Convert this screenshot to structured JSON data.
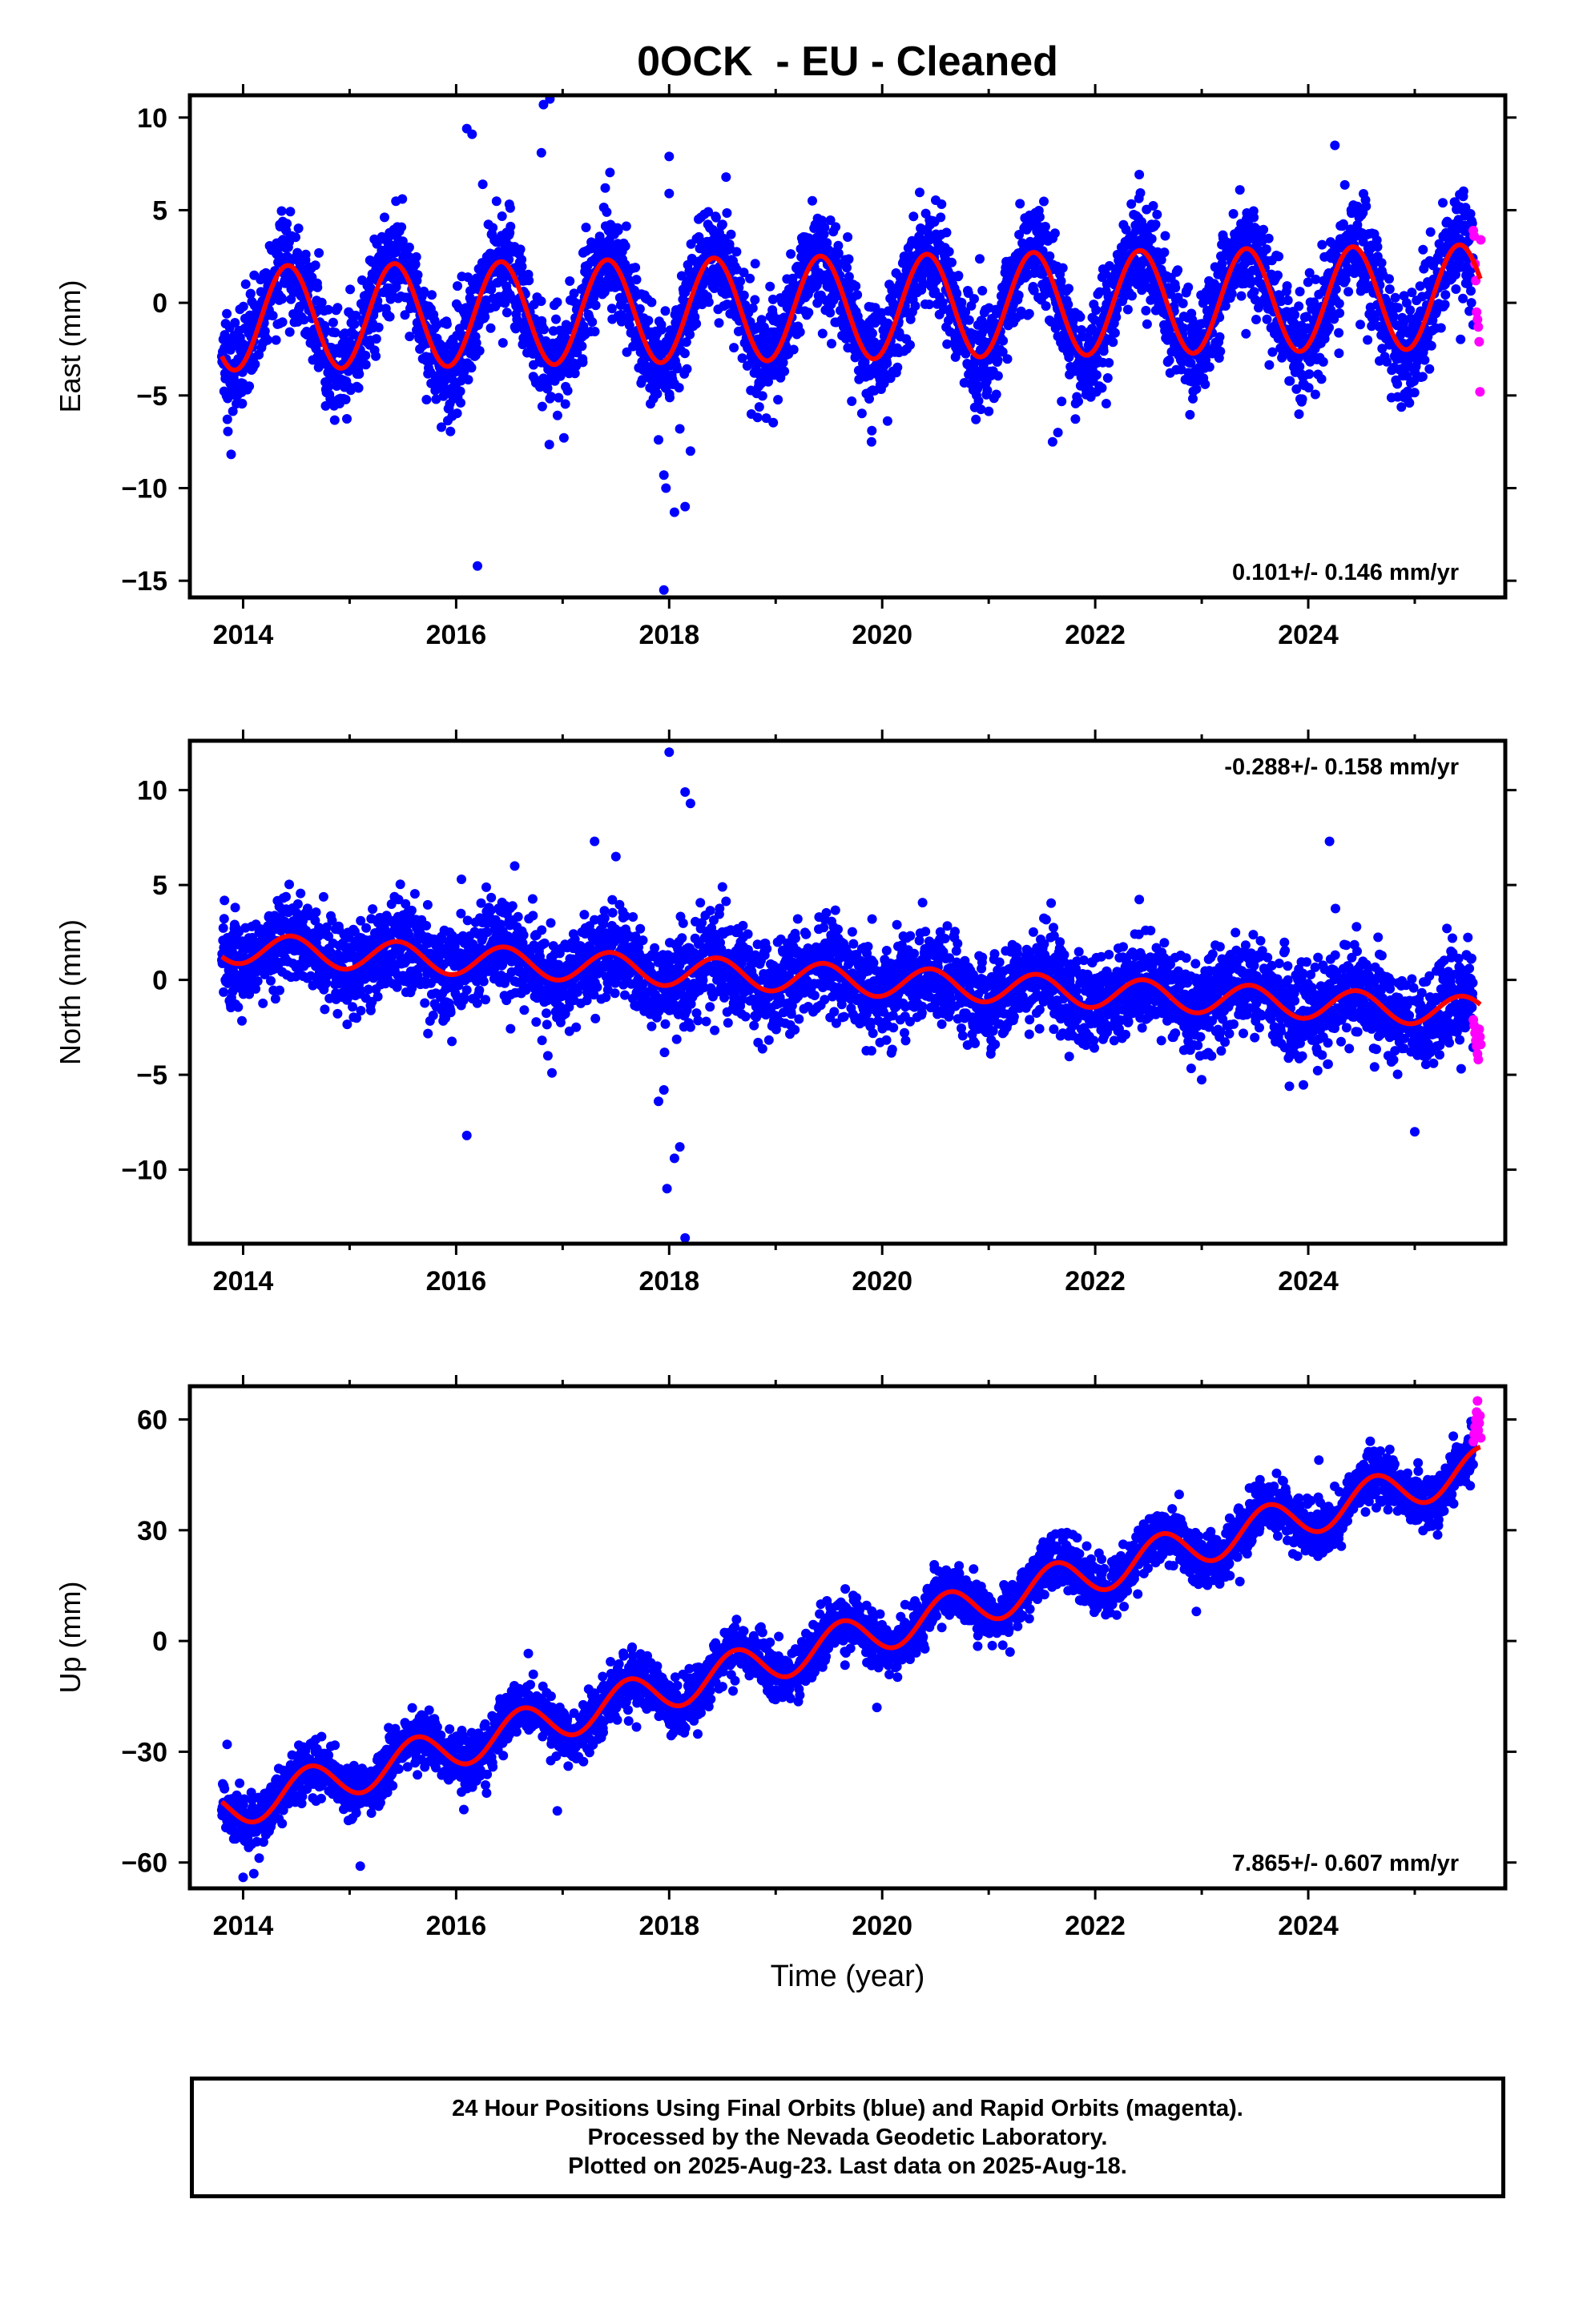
{
  "title": "0OCK  - EU - Cleaned",
  "x_axis_label": "Time (year)",
  "footer": {
    "line1": "24 Hour Positions Using Final Orbits (blue) and Rapid Orbits (magenta).",
    "line2": "Processed by the Nevada Geodetic Laboratory.",
    "line3": "Plotted on 2025-Aug-23. Last data on 2025-Aug-18."
  },
  "colors": {
    "final_orbits": "#0000ff",
    "rapid_orbits": "#ff00ff",
    "model_fit": "#ff0000"
  },
  "chart_data": [
    {
      "type": "scatter",
      "ylabel": "East (mm)",
      "rate_text": "0.101+/- 0.146 mm/yr",
      "rate_position": "bottom-right",
      "xlim": [
        2013.5,
        2025.85
      ],
      "ylim": [
        -15.9,
        11.2
      ],
      "xticks": [
        "2014",
        "2016",
        "2018",
        "2020",
        "2022",
        "2024"
      ],
      "yticks": [
        "10",
        "5",
        "0",
        "−5",
        "−10",
        "−15"
      ],
      "ytick_values": [
        10,
        5,
        0,
        -5,
        -10,
        -15
      ],
      "model": {
        "offset": -0.25,
        "rate": 0.101,
        "ref_year": 2019.7,
        "amplitude": 2.8,
        "phase_peak": 0.42
      },
      "scatter_sigma": 1.4,
      "data_start": 2013.8,
      "data_end": 2025.55,
      "rapid_start": 2025.55,
      "rapid_end": 2025.62,
      "rapid_values": [
        3.9,
        3.6,
        2.1,
        1.2,
        -0.5,
        -0.9,
        -1.3,
        -2.1,
        -4.8,
        3.4
      ],
      "outliers": [
        {
          "x": 2016.1,
          "y": 9.4
        },
        {
          "x": 2016.15,
          "y": 9.1
        },
        {
          "x": 2016.2,
          "y": -14.2
        },
        {
          "x": 2016.25,
          "y": 6.4
        },
        {
          "x": 2016.8,
          "y": 8.1
        },
        {
          "x": 2016.82,
          "y": 10.7
        },
        {
          "x": 2016.88,
          "y": 11.0
        },
        {
          "x": 2017.95,
          "y": -9.3
        },
        {
          "x": 2017.97,
          "y": -10.0
        },
        {
          "x": 2018.0,
          "y": 7.9
        },
        {
          "x": 2018.0,
          "y": 5.9
        },
        {
          "x": 2018.05,
          "y": -11.3
        },
        {
          "x": 2018.15,
          "y": -11.0
        },
        {
          "x": 2017.95,
          "y": -15.5
        },
        {
          "x": 2024.25,
          "y": 8.5
        },
        {
          "x": 2018.1,
          "y": -6.8
        },
        {
          "x": 2017.9,
          "y": -7.4
        },
        {
          "x": 2018.2,
          "y": -8.0
        },
        {
          "x": 2021.6,
          "y": -7.5
        },
        {
          "x": 2021.65,
          "y": -7.0
        },
        {
          "x": 2019.9,
          "y": -7.5
        },
        {
          "x": 2017.4,
          "y": 6.2
        },
        {
          "x": 2024.95,
          "y": -5.4
        }
      ]
    },
    {
      "type": "scatter",
      "ylabel": "North (mm)",
      "rate_text": "-0.288+/- 0.158 mm/yr",
      "rate_position": "top-right",
      "xlim": [
        2013.5,
        2025.85
      ],
      "ylim": [
        -13.9,
        12.6
      ],
      "xticks": [
        "2014",
        "2016",
        "2018",
        "2020",
        "2022",
        "2024"
      ],
      "yticks": [
        "10",
        "5",
        "0",
        "−5",
        "−10"
      ],
      "ytick_values": [
        10,
        5,
        0,
        -5,
        -10
      ],
      "model": {
        "offset": 0.0,
        "rate": -0.288,
        "ref_year": 2019.7,
        "amplitude": 0.8,
        "phase_peak": 0.45
      },
      "scatter_sigma": 1.2,
      "data_start": 2013.8,
      "data_end": 2025.55,
      "rapid_start": 2025.55,
      "rapid_end": 2025.62,
      "rapid_values": [
        -2.1,
        -2.4,
        -2.8,
        -3.2,
        -3.5,
        -3.9,
        -4.2,
        -2.6,
        -3.0,
        -3.4
      ],
      "outliers": [
        {
          "x": 2018.0,
          "y": 12.0
        },
        {
          "x": 2018.15,
          "y": 9.9
        },
        {
          "x": 2018.2,
          "y": 9.3
        },
        {
          "x": 2017.95,
          "y": -5.8
        },
        {
          "x": 2017.9,
          "y": -6.4
        },
        {
          "x": 2017.98,
          "y": -11.0
        },
        {
          "x": 2018.05,
          "y": -9.4
        },
        {
          "x": 2018.1,
          "y": -8.8
        },
        {
          "x": 2018.15,
          "y": -13.6
        },
        {
          "x": 2016.1,
          "y": -8.2
        },
        {
          "x": 2016.05,
          "y": 5.3
        },
        {
          "x": 2024.2,
          "y": 7.3
        },
        {
          "x": 2025.0,
          "y": -8.0
        },
        {
          "x": 2017.3,
          "y": 7.3
        },
        {
          "x": 2017.5,
          "y": 6.5
        },
        {
          "x": 2016.55,
          "y": 6.0
        },
        {
          "x": 2018.5,
          "y": 4.9
        },
        {
          "x": 2016.9,
          "y": -4.9
        }
      ]
    },
    {
      "type": "scatter",
      "ylabel": "Up (mm)",
      "rate_text": "7.865+/- 0.607 mm/yr",
      "rate_position": "bottom-right",
      "xlim": [
        2013.5,
        2025.85
      ],
      "ylim": [
        -67,
        69
      ],
      "xticks": [
        "2014",
        "2016",
        "2018",
        "2020",
        "2022",
        "2024"
      ],
      "yticks": [
        "60",
        "30",
        "0",
        "−30",
        "−60"
      ],
      "ytick_values": [
        60,
        30,
        0,
        -30,
        -60
      ],
      "model": {
        "offset": 0.5,
        "rate": 7.865,
        "ref_year": 2019.7,
        "amplitude": 5.5,
        "phase_peak": 0.62
      },
      "scatter_sigma": 3.6,
      "data_start": 2013.8,
      "data_end": 2025.55,
      "rapid_start": 2025.55,
      "rapid_end": 2025.62,
      "rapid_values": [
        54,
        56,
        58,
        60,
        62,
        65,
        57,
        59,
        61,
        55
      ],
      "outliers": [
        {
          "x": 2013.85,
          "y": -28
        },
        {
          "x": 2014.0,
          "y": -64
        },
        {
          "x": 2015.1,
          "y": -61
        },
        {
          "x": 2016.95,
          "y": -46
        },
        {
          "x": 2019.95,
          "y": -18
        },
        {
          "x": 2014.1,
          "y": -63
        },
        {
          "x": 2021.2,
          "y": -3
        },
        {
          "x": 2024.1,
          "y": 49
        },
        {
          "x": 2022.95,
          "y": 8
        }
      ]
    }
  ]
}
